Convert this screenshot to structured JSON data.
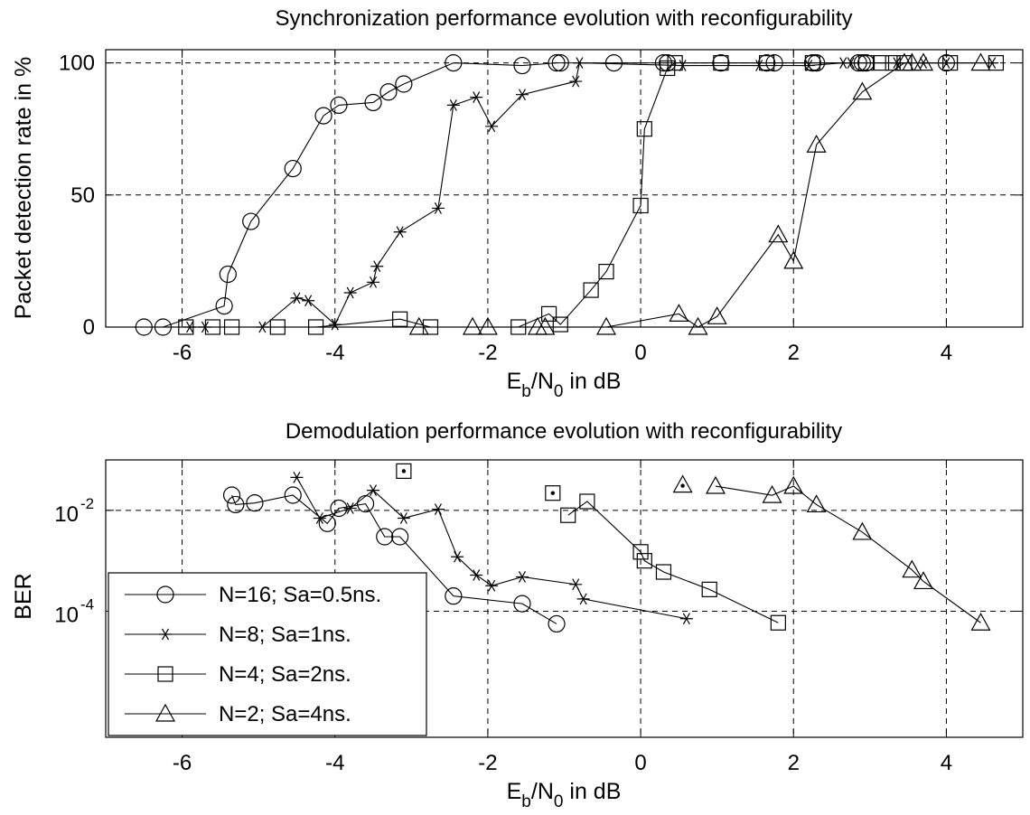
{
  "chart_data": [
    {
      "type": "line",
      "title": "Synchronization performance evolution with reconfigurability",
      "xlabel": {
        "main": "E",
        "sub1": "b",
        "mid": "/N",
        "sub2": "0",
        "tail": " in dB"
      },
      "ylabel": "Packet detection rate in %",
      "xlim": [
        -7,
        5
      ],
      "ylim": [
        0,
        105
      ],
      "xticks": [
        -6,
        -4,
        -2,
        0,
        2,
        4
      ],
      "xtick_labels": [
        "-6",
        "-4",
        "-2",
        "0",
        "2",
        "4"
      ],
      "yticks": [
        0,
        50,
        100
      ],
      "ytick_labels": [
        "0",
        "50",
        "100"
      ],
      "grid": true,
      "series": [
        {
          "name": "N=16; Sa=0.5ns.",
          "marker": "circle",
          "x": [
            -6.5,
            -6.25,
            -5.45,
            -5.4,
            -5.1,
            -4.55,
            -4.15,
            -3.95,
            -3.5,
            -3.3,
            -3.1,
            -2.45,
            -1.55,
            -1.1,
            -1.05,
            -0.35,
            0.3,
            0.35,
            1.05,
            1.65,
            1.75,
            2.25,
            2.3,
            2.85,
            2.9,
            2.95,
            4.0
          ],
          "y": [
            0,
            0,
            8,
            20,
            40,
            60,
            80,
            84,
            85,
            89,
            92,
            100,
            99,
            100,
            100,
            100,
            100,
            100,
            100,
            100,
            100,
            100,
            100,
            100,
            100,
            100,
            100
          ]
        },
        {
          "name": "N=8; Sa=1ns.",
          "marker": "star",
          "x": [
            -5.9,
            -5.7,
            -4.95,
            -4.5,
            -4.35,
            -4.0,
            -3.8,
            -3.5,
            -3.45,
            -3.15,
            -2.65,
            -2.45,
            -2.15,
            -1.95,
            -1.55,
            -0.85,
            -0.8,
            0.55,
            1.55,
            2.2,
            2.65,
            2.75,
            3.35,
            3.7,
            4.0,
            4.6
          ],
          "y": [
            0,
            0,
            0,
            11,
            10,
            1,
            13,
            17,
            23,
            36,
            45,
            84,
            87,
            76,
            88,
            93,
            100,
            99,
            99,
            99,
            100,
            100,
            100,
            100,
            100,
            100
          ]
        },
        {
          "name": "N=4; Sa=2ns.",
          "marker": "square",
          "x": [
            -5.95,
            -5.6,
            -5.35,
            -4.75,
            -4.25,
            -3.15,
            -2.75,
            -1.6,
            -1.2,
            -1.05,
            -0.65,
            -0.45,
            0.0,
            0.05,
            0.35,
            0.45,
            1.05,
            1.65,
            2.25,
            2.95,
            3.15,
            3.3,
            3.45,
            4.05,
            4.65
          ],
          "y": [
            0,
            0,
            0,
            0,
            0,
            3,
            0,
            0,
            5,
            1,
            14,
            21,
            46,
            75,
            98,
            100,
            100,
            100,
            100,
            100,
            100,
            100,
            100,
            100,
            100
          ]
        },
        {
          "name": "N=2; Sa=4ns.",
          "marker": "triangle",
          "x": [
            -2.9,
            -2.2,
            -2.0,
            -1.35,
            -1.25,
            -0.45,
            0.5,
            0.75,
            1.0,
            1.8,
            2.0,
            2.3,
            2.9,
            3.45,
            3.55,
            3.7,
            4.45
          ],
          "y": [
            0,
            0,
            0,
            0,
            0,
            0,
            5,
            0,
            4,
            35,
            25,
            69,
            89,
            100,
            100,
            100,
            100
          ]
        }
      ]
    },
    {
      "type": "line",
      "title": "Demodulation performance evolution with reconfigurability",
      "xlabel": {
        "main": "E",
        "sub1": "b",
        "mid": "/N",
        "sub2": "0",
        "tail": " in dB"
      },
      "ylabel": "BER",
      "yscale": "log",
      "xlim": [
        -7,
        5
      ],
      "ylim_log10": [
        -6.5,
        -1
      ],
      "xticks": [
        -6,
        -4,
        -2,
        0,
        2,
        4
      ],
      "xtick_labels": [
        "-6",
        "-4",
        "-2",
        "0",
        "2",
        "4"
      ],
      "yticks_log10": [
        -2,
        -4
      ],
      "ytick_labels": [
        {
          "base": "10",
          "exp": "-2"
        },
        {
          "base": "10",
          "exp": "-4"
        }
      ],
      "grid": true,
      "legend": {
        "position": "lower-left",
        "entries": [
          "N=16; Sa=0.5ns.",
          "N=8; Sa=1ns.",
          "N=4; Sa=2ns.",
          "N=2; Sa=4ns."
        ]
      },
      "series": [
        {
          "name": "N=16; Sa=0.5ns.",
          "marker": "circle",
          "x": [
            -5.35,
            -5.3,
            -5.05,
            -4.55,
            -4.1,
            -3.95,
            -3.6,
            -3.35,
            -3.15,
            -2.45,
            -1.55,
            -1.1
          ],
          "y": [
            0.02,
            0.013,
            0.014,
            0.02,
            0.0055,
            0.011,
            0.0135,
            0.003,
            0.003,
            0.0002,
            0.000141,
            5.62e-05
          ]
        },
        {
          "name": "N=8; Sa=1ns.",
          "marker": "star",
          "x": [
            -4.5,
            -4.2,
            -3.8,
            -3.5,
            -3.1,
            -2.65,
            -2.4,
            -2.15,
            -1.95,
            -1.55,
            -0.85,
            -0.75,
            0.6
          ],
          "y": [
            0.045,
            0.007,
            0.011,
            0.025,
            0.007,
            0.0105,
            0.0012,
            0.00052,
            0.00032,
            0.00048,
            0.00034,
            0.000175,
            7.1e-05
          ]
        },
        {
          "name": "N=4; Sa=2ns.",
          "marker": "square",
          "x": [
            -0.95,
            -0.7,
            0.0,
            0.05,
            0.3,
            0.9,
            1.8
          ],
          "y": [
            0.008,
            0.015,
            0.0015,
            0.001,
            0.0006,
            0.00027,
            5.9e-05
          ]
        },
        {
          "name": "N=2; Sa=4ns.",
          "marker": "triangle",
          "x": [
            0.98,
            1.72,
            2.0,
            2.3,
            2.9,
            3.55,
            3.7,
            4.45
          ],
          "y": [
            0.0302,
            0.0199,
            0.0302,
            0.013,
            0.0037,
            0.00066,
            0.00039,
            5.9e-05
          ]
        }
      ],
      "isolated_points": [
        {
          "marker": "square-dot",
          "x": -3.1,
          "y": 0.06
        },
        {
          "marker": "square-dot",
          "x": -1.15,
          "y": 0.022
        },
        {
          "marker": "triangle-dot",
          "x": 0.55,
          "y": 0.032
        }
      ]
    }
  ]
}
